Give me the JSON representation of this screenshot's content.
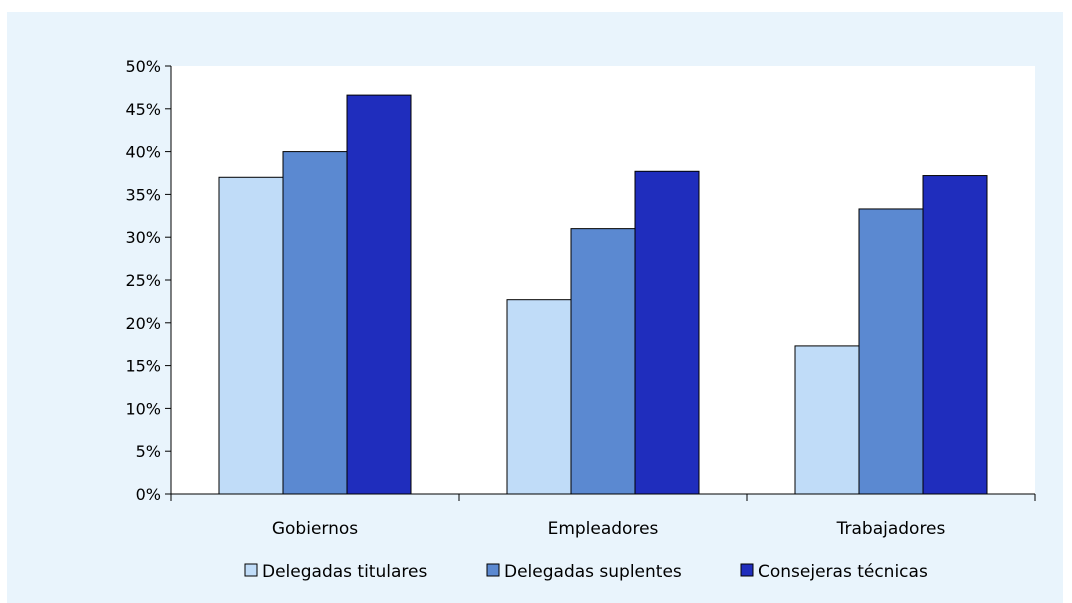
{
  "chart_data": {
    "type": "bar",
    "title": "",
    "xlabel": "",
    "ylabel": "",
    "categories": [
      "Gobiernos",
      "Empleadores",
      "Trabajadores"
    ],
    "series": [
      {
        "name": "Delegadas titulares",
        "values": [
          37.0,
          22.7,
          17.3
        ],
        "color": "#c0dcf8"
      },
      {
        "name": "Delegadas suplentes",
        "values": [
          40.0,
          31.0,
          33.3
        ],
        "color": "#5b89d1"
      },
      {
        "name": "Consejeras técnicas",
        "values": [
          46.6,
          37.7,
          37.2
        ],
        "color": "#1f2dbd"
      }
    ],
    "ylim": [
      0,
      50
    ],
    "yticks": [
      0,
      5,
      10,
      15,
      20,
      25,
      30,
      35,
      40,
      45,
      50
    ],
    "ytick_labels": [
      "0%",
      "5%",
      "10%",
      "15%",
      "20%",
      "25%",
      "30%",
      "35%",
      "40%",
      "45%",
      "50%"
    ],
    "grid": false,
    "legend_position": "bottom"
  }
}
